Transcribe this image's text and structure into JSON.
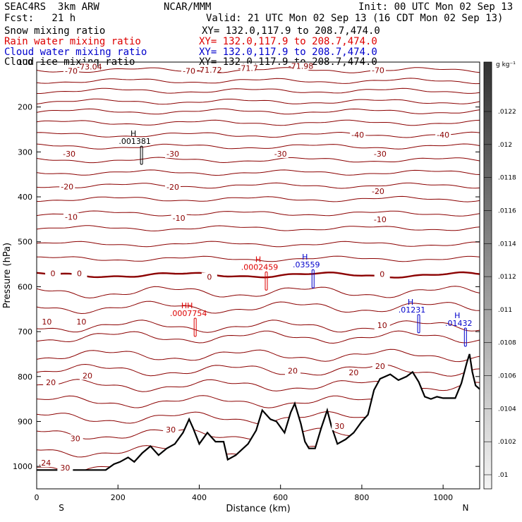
{
  "header": {
    "model": "SEAC4RS  3km ARW",
    "org": "NCAR/MMM",
    "init": "Init: 00 UTC Mon 02 Sep 13",
    "fcst": "Fcst:   21 h",
    "valid": "Valid: 21 UTC Mon 02 Sep 13 (16 CDT Mon 02 Sep 13)",
    "fields": [
      {
        "label": "Snow mixing ratio",
        "xy": "XY= 132.0,117.9 to 208.7,474.0",
        "color": "#000000"
      },
      {
        "label": "Rain water mixing ratio",
        "xy": "XY= 132.0,117.9 to 208.7,474.0",
        "color": "#dd0000"
      },
      {
        "label": "Cloud water mixing ratio",
        "xy": "XY= 132.0,117.9 to 208.7,474.0",
        "color": "#0000cc"
      },
      {
        "label": "Cloud ice mixing ratio",
        "xy": "XY= 132.0,117.9 to 208.7,474.0",
        "color": "#000000"
      }
    ]
  },
  "chart_data": {
    "type": "contour-cross-section",
    "xlabel": "Distance (km)",
    "ylabel": "Pressure (hPa)",
    "xlim": [
      0,
      1090
    ],
    "ylim": [
      1050,
      100
    ],
    "x_ticks": [
      0,
      200,
      400,
      600,
      800,
      1000
    ],
    "y_ticks": [
      100,
      200,
      300,
      400,
      500,
      600,
      700,
      800,
      900,
      1000
    ],
    "x_end_labels": {
      "left": "S",
      "right": "N"
    },
    "temperature_contours": {
      "color": "#8b0000",
      "interval_c": 5,
      "freezing_level_color": "#8b0000",
      "levels": [
        {
          "t": -70,
          "p": 118
        },
        {
          "t": -65,
          "p": 142
        },
        {
          "t": -60,
          "p": 164
        },
        {
          "t": -55,
          "p": 188
        },
        {
          "t": -50,
          "p": 210
        },
        {
          "t": -45,
          "p": 235
        },
        {
          "t": -40,
          "p": 262
        },
        {
          "t": -35,
          "p": 288
        },
        {
          "t": -30,
          "p": 318
        },
        {
          "t": -25,
          "p": 346
        },
        {
          "t": -20,
          "p": 375
        },
        {
          "t": -15,
          "p": 405
        },
        {
          "t": -10,
          "p": 437
        },
        {
          "t": -5,
          "p": 470
        },
        {
          "t": 0,
          "p": 505
        },
        {
          "t": 5,
          "p": 538
        },
        {
          "t": 0,
          "p": 574
        },
        {
          "t": 5,
          "p": 612
        },
        {
          "t": 10,
          "p": 646
        },
        {
          "t": 10,
          "p": 688
        },
        {
          "t": 15,
          "p": 712
        },
        {
          "t": 15,
          "p": 753
        },
        {
          "t": 20,
          "p": 786
        },
        {
          "t": 20,
          "p": 820
        },
        {
          "t": 25,
          "p": 856
        },
        {
          "t": 25,
          "p": 892
        },
        {
          "t": 30,
          "p": 928
        },
        {
          "t": 30,
          "p": 966
        },
        {
          "t": 35,
          "p": 1000
        }
      ]
    },
    "contour_labels": [
      {
        "text": "-70",
        "x": 85,
        "p": 120
      },
      {
        "text": "-73.04",
        "x": 130,
        "p": 110
      },
      {
        "text": "-71.72",
        "x": 425,
        "p": 117
      },
      {
        "text": "-71.7",
        "x": 520,
        "p": 113
      },
      {
        "text": "-71.98",
        "x": 650,
        "p": 109
      },
      {
        "text": "-70",
        "x": 375,
        "p": 120
      },
      {
        "text": "-70",
        "x": 840,
        "p": 118
      },
      {
        "text": "-40",
        "x": 790,
        "p": 262
      },
      {
        "text": "-40",
        "x": 1000,
        "p": 262
      },
      {
        "text": "-30",
        "x": 80,
        "p": 304
      },
      {
        "text": "-30",
        "x": 335,
        "p": 304
      },
      {
        "text": "-30",
        "x": 600,
        "p": 304
      },
      {
        "text": "-30",
        "x": 845,
        "p": 304
      },
      {
        "text": "-20",
        "x": 75,
        "p": 377
      },
      {
        "text": "-20",
        "x": 335,
        "p": 378
      },
      {
        "text": "-20",
        "x": 840,
        "p": 387
      },
      {
        "text": "-10",
        "x": 85,
        "p": 445
      },
      {
        "text": "-10",
        "x": 350,
        "p": 447
      },
      {
        "text": "-10",
        "x": 845,
        "p": 450
      },
      {
        "text": "0",
        "x": 40,
        "p": 570
      },
      {
        "text": "0",
        "x": 105,
        "p": 570
      },
      {
        "text": "0",
        "x": 425,
        "p": 578
      },
      {
        "text": "0",
        "x": 850,
        "p": 572
      },
      {
        "text": "10",
        "x": 25,
        "p": 678
      },
      {
        "text": "10",
        "x": 110,
        "p": 678
      },
      {
        "text": "10",
        "x": 850,
        "p": 686
      },
      {
        "text": "20",
        "x": 35,
        "p": 813
      },
      {
        "text": "20",
        "x": 125,
        "p": 798
      },
      {
        "text": "20",
        "x": 630,
        "p": 787
      },
      {
        "text": "20",
        "x": 780,
        "p": 791
      },
      {
        "text": "20",
        "x": 845,
        "p": 777
      },
      {
        "text": "30",
        "x": 95,
        "p": 938
      },
      {
        "text": "30",
        "x": 330,
        "p": 918
      },
      {
        "text": "30",
        "x": 745,
        "p": 910
      },
      {
        "text": ".24",
        "x": 20,
        "p": 992
      },
      {
        "text": "30",
        "x": 70,
        "p": 1003
      }
    ],
    "maxima": [
      {
        "text": "H",
        "value": ".001381",
        "x": 238,
        "p": 265,
        "color": "#000000"
      },
      {
        "text": "H",
        "value": ".0002459",
        "x": 545,
        "p": 545,
        "color": "#dd0000"
      },
      {
        "text": "H",
        "value": ".03559",
        "x": 660,
        "p": 540,
        "color": "#0000cc"
      },
      {
        "text": "HH",
        "value": ".0007754",
        "x": 370,
        "p": 648,
        "color": "#dd0000"
      },
      {
        "text": "H",
        "value": ".01231",
        "x": 920,
        "p": 640,
        "color": "#0000cc"
      },
      {
        "text": "H",
        "value": ".01432",
        "x": 1035,
        "p": 670,
        "color": "#0000cc"
      }
    ],
    "terrain": {
      "fill": "#ffffff",
      "points": [
        [
          0,
          1008
        ],
        [
          170,
          1008
        ],
        [
          190,
          995
        ],
        [
          205,
          990
        ],
        [
          225,
          980
        ],
        [
          240,
          990
        ],
        [
          260,
          970
        ],
        [
          280,
          955
        ],
        [
          300,
          975
        ],
        [
          320,
          960
        ],
        [
          340,
          950
        ],
        [
          360,
          925
        ],
        [
          375,
          895
        ],
        [
          385,
          915
        ],
        [
          400,
          950
        ],
        [
          420,
          925
        ],
        [
          440,
          945
        ],
        [
          460,
          945
        ],
        [
          470,
          985
        ],
        [
          490,
          975
        ],
        [
          520,
          950
        ],
        [
          540,
          920
        ],
        [
          555,
          875
        ],
        [
          575,
          895
        ],
        [
          590,
          900
        ],
        [
          610,
          925
        ],
        [
          625,
          880
        ],
        [
          635,
          860
        ],
        [
          650,
          905
        ],
        [
          660,
          945
        ],
        [
          670,
          960
        ],
        [
          685,
          960
        ],
        [
          700,
          915
        ],
        [
          715,
          875
        ],
        [
          725,
          910
        ],
        [
          740,
          950
        ],
        [
          760,
          940
        ],
        [
          780,
          925
        ],
        [
          800,
          900
        ],
        [
          815,
          885
        ],
        [
          830,
          830
        ],
        [
          845,
          805
        ],
        [
          870,
          795
        ],
        [
          890,
          808
        ],
        [
          910,
          800
        ],
        [
          925,
          790
        ],
        [
          940,
          812
        ],
        [
          955,
          845
        ],
        [
          970,
          850
        ],
        [
          985,
          845
        ],
        [
          1000,
          848
        ],
        [
          1015,
          848
        ],
        [
          1030,
          848
        ],
        [
          1045,
          815
        ],
        [
          1058,
          770
        ],
        [
          1065,
          750
        ],
        [
          1072,
          790
        ],
        [
          1080,
          820
        ],
        [
          1090,
          828
        ]
      ]
    },
    "colorbar": {
      "unit": "g kg⁻¹",
      "labels": [
        ".0122",
        ".012",
        ".0118",
        ".0116",
        ".0114",
        ".0112",
        ".011",
        ".0108",
        ".0106",
        ".0104",
        ".0102",
        ".01"
      ],
      "gradient": [
        "#333333",
        "#f4f4f4"
      ]
    },
    "grid": false
  }
}
